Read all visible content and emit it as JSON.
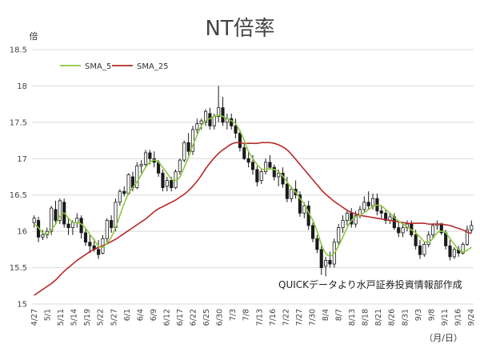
{
  "chart_data": {
    "type": "candlestick",
    "title": "NT倍率",
    "y_unit_label": "倍",
    "x_unit_label": "（月/日）",
    "annotation": "QUICKデータより水戸証券投資情報部作成",
    "ylim": [
      15,
      18.5
    ],
    "yticks": [
      "15",
      "15.5",
      "16",
      "16.5",
      "17",
      "17.5",
      "18",
      "18.5"
    ],
    "grid": true,
    "legend_position": "top-left",
    "colors": {
      "up": "#ffffff",
      "down": "#1a1a1a",
      "sma5": "#8dc63f",
      "sma25": "#b52a2a",
      "grid": "#d9d9d9"
    },
    "x_labels": [
      "4/27",
      "5/1",
      "5/11",
      "5/14",
      "5/19",
      "5/22",
      "5/27",
      "6/1",
      "6/4",
      "6/9",
      "6/12",
      "6/17",
      "6/22",
      "6/25",
      "6/30",
      "7/3",
      "7/8",
      "7/13",
      "7/16",
      "7/22",
      "7/27",
      "7/30",
      "8/4",
      "8/7",
      "8/13",
      "8/18",
      "8/21",
      "8/26",
      "8/31",
      "9/3",
      "9/8",
      "9/11",
      "9/16",
      "9/24"
    ],
    "candles": [
      [
        16.12,
        16.22,
        16.05,
        16.18
      ],
      [
        16.15,
        16.2,
        15.85,
        15.92
      ],
      [
        15.92,
        16.02,
        15.88,
        15.95
      ],
      [
        15.95,
        16.05,
        15.9,
        16.0
      ],
      [
        16.0,
        16.35,
        15.95,
        16.32
      ],
      [
        16.3,
        16.42,
        16.1,
        16.15
      ],
      [
        16.15,
        16.45,
        16.1,
        16.42
      ],
      [
        16.4,
        16.45,
        16.05,
        16.1
      ],
      [
        16.1,
        16.18,
        15.95,
        16.05
      ],
      [
        16.05,
        16.15,
        15.95,
        16.12
      ],
      [
        16.12,
        16.25,
        16.05,
        16.18
      ],
      [
        16.18,
        16.22,
        15.9,
        15.98
      ],
      [
        15.98,
        16.05,
        15.8,
        15.85
      ],
      [
        15.85,
        15.95,
        15.7,
        15.8
      ],
      [
        15.8,
        15.9,
        15.72,
        15.75
      ],
      [
        15.75,
        15.88,
        15.62,
        15.68
      ],
      [
        15.7,
        15.95,
        15.68,
        15.9
      ],
      [
        15.9,
        16.18,
        15.85,
        16.15
      ],
      [
        16.15,
        16.22,
        15.98,
        16.05
      ],
      [
        16.05,
        16.45,
        16.0,
        16.4
      ],
      [
        16.4,
        16.58,
        16.35,
        16.55
      ],
      [
        16.55,
        16.62,
        16.48,
        16.52
      ],
      [
        16.52,
        16.8,
        16.5,
        16.78
      ],
      [
        16.75,
        16.82,
        16.55,
        16.6
      ],
      [
        16.6,
        16.95,
        16.58,
        16.9
      ],
      [
        16.9,
        16.98,
        16.8,
        16.92
      ],
      [
        16.92,
        17.12,
        16.88,
        17.08
      ],
      [
        17.08,
        17.12,
        16.92,
        17.0
      ],
      [
        17.0,
        17.1,
        16.88,
        16.95
      ],
      [
        16.95,
        16.98,
        16.75,
        16.8
      ],
      [
        16.8,
        16.85,
        16.55,
        16.6
      ],
      [
        16.62,
        16.75,
        16.55,
        16.7
      ],
      [
        16.7,
        16.75,
        16.55,
        16.6
      ],
      [
        16.6,
        16.85,
        16.58,
        16.82
      ],
      [
        16.82,
        17.0,
        16.78,
        16.98
      ],
      [
        16.98,
        17.25,
        16.95,
        17.22
      ],
      [
        17.22,
        17.35,
        17.05,
        17.1
      ],
      [
        17.1,
        17.45,
        17.05,
        17.4
      ],
      [
        17.4,
        17.55,
        17.35,
        17.48
      ],
      [
        17.48,
        17.55,
        17.4,
        17.52
      ],
      [
        17.5,
        17.68,
        17.45,
        17.65
      ],
      [
        17.62,
        17.7,
        17.4,
        17.45
      ],
      [
        17.45,
        17.62,
        17.4,
        17.58
      ],
      [
        17.58,
        18.0,
        17.5,
        17.7
      ],
      [
        17.7,
        17.85,
        17.45,
        17.5
      ],
      [
        17.5,
        17.62,
        17.4,
        17.55
      ],
      [
        17.55,
        17.62,
        17.4,
        17.45
      ],
      [
        17.45,
        17.55,
        17.28,
        17.35
      ],
      [
        17.35,
        17.4,
        17.1,
        17.15
      ],
      [
        17.15,
        17.2,
        16.98,
        17.0
      ],
      [
        17.0,
        17.1,
        16.88,
        16.95
      ],
      [
        16.95,
        17.05,
        16.78,
        16.85
      ],
      [
        16.85,
        16.9,
        16.62,
        16.68
      ],
      [
        16.7,
        16.85,
        16.65,
        16.82
      ],
      [
        16.82,
        17.0,
        16.78,
        16.95
      ],
      [
        16.95,
        17.05,
        16.85,
        16.88
      ],
      [
        16.88,
        16.92,
        16.7,
        16.75
      ],
      [
        16.75,
        16.85,
        16.62,
        16.8
      ],
      [
        16.8,
        16.88,
        16.6,
        16.65
      ],
      [
        16.65,
        16.75,
        16.4,
        16.45
      ],
      [
        16.45,
        16.62,
        16.4,
        16.58
      ],
      [
        16.58,
        16.7,
        16.45,
        16.5
      ],
      [
        16.5,
        16.55,
        16.2,
        16.25
      ],
      [
        16.25,
        16.4,
        16.18,
        16.35
      ],
      [
        16.35,
        16.42,
        16.02,
        16.08
      ],
      [
        16.08,
        16.12,
        15.85,
        15.9
      ],
      [
        15.9,
        15.95,
        15.7,
        15.75
      ],
      [
        15.75,
        15.82,
        15.4,
        15.5
      ],
      [
        15.52,
        15.65,
        15.38,
        15.6
      ],
      [
        15.6,
        15.72,
        15.5,
        15.55
      ],
      [
        15.55,
        15.9,
        15.5,
        15.85
      ],
      [
        15.85,
        16.1,
        15.8,
        16.05
      ],
      [
        16.05,
        16.22,
        15.98,
        16.15
      ],
      [
        16.15,
        16.3,
        16.08,
        16.25
      ],
      [
        16.25,
        16.32,
        16.05,
        16.1
      ],
      [
        16.1,
        16.28,
        16.05,
        16.22
      ],
      [
        16.22,
        16.35,
        16.18,
        16.3
      ],
      [
        16.3,
        16.48,
        16.25,
        16.4
      ],
      [
        16.4,
        16.55,
        16.3,
        16.35
      ],
      [
        16.35,
        16.52,
        16.3,
        16.45
      ],
      [
        16.45,
        16.52,
        16.22,
        16.28
      ],
      [
        16.28,
        16.35,
        16.18,
        16.25
      ],
      [
        16.25,
        16.3,
        16.1,
        16.15
      ],
      [
        16.15,
        16.25,
        16.1,
        16.2
      ],
      [
        16.2,
        16.25,
        16.02,
        16.05
      ],
      [
        16.05,
        16.12,
        15.92,
        15.98
      ],
      [
        15.98,
        16.1,
        15.92,
        16.05
      ],
      [
        16.05,
        16.15,
        16.0,
        16.1
      ],
      [
        16.1,
        16.15,
        15.92,
        15.95
      ],
      [
        15.95,
        16.02,
        15.75,
        15.8
      ],
      [
        15.8,
        15.88,
        15.62,
        15.68
      ],
      [
        15.68,
        15.85,
        15.65,
        15.82
      ],
      [
        15.82,
        16.0,
        15.78,
        15.95
      ],
      [
        15.95,
        16.1,
        15.9,
        16.08
      ],
      [
        16.08,
        16.15,
        16.02,
        16.1
      ],
      [
        16.1,
        16.12,
        15.95,
        15.98
      ],
      [
        15.98,
        16.02,
        15.75,
        15.8
      ],
      [
        15.8,
        15.88,
        15.6,
        15.65
      ],
      [
        15.65,
        15.78,
        15.62,
        15.75
      ],
      [
        15.75,
        15.8,
        15.65,
        15.7
      ],
      [
        15.7,
        15.85,
        15.68,
        15.82
      ],
      [
        15.82,
        16.08,
        15.8,
        16.02
      ],
      [
        16.02,
        16.15,
        15.98,
        16.08
      ]
    ],
    "sma5": [
      16.1,
      16.05,
      15.98,
      15.96,
      16.02,
      16.1,
      16.2,
      16.25,
      16.18,
      16.12,
      16.12,
      16.1,
      16.04,
      15.96,
      15.88,
      15.8,
      15.78,
      15.84,
      15.92,
      16.05,
      16.22,
      16.38,
      16.52,
      16.6,
      16.68,
      16.78,
      16.88,
      16.95,
      16.98,
      16.95,
      16.88,
      16.8,
      16.72,
      16.7,
      16.75,
      16.88,
      17.02,
      17.18,
      17.32,
      17.45,
      17.52,
      17.55,
      17.58,
      17.6,
      17.58,
      17.55,
      17.52,
      17.48,
      17.38,
      17.25,
      17.1,
      17.0,
      16.92,
      16.86,
      16.85,
      16.86,
      16.85,
      16.82,
      16.76,
      16.68,
      16.6,
      16.54,
      16.45,
      16.38,
      16.26,
      16.15,
      16.0,
      15.82,
      15.7,
      15.66,
      15.7,
      15.8,
      15.92,
      16.05,
      16.15,
      16.2,
      16.22,
      16.26,
      16.3,
      16.34,
      16.36,
      16.35,
      16.3,
      16.25,
      16.19,
      16.14,
      16.1,
      16.06,
      16.02,
      15.98,
      15.92,
      15.86,
      15.85,
      15.9,
      15.98,
      16.0,
      15.98,
      15.9,
      15.82,
      15.75,
      15.72,
      15.74,
      15.78
    ],
    "sma25": [
      15.12,
      15.16,
      15.2,
      15.24,
      15.28,
      15.33,
      15.39,
      15.45,
      15.5,
      15.55,
      15.6,
      15.64,
      15.68,
      15.72,
      15.75,
      15.78,
      15.8,
      15.83,
      15.86,
      15.89,
      15.93,
      15.97,
      16.01,
      16.05,
      16.09,
      16.13,
      16.17,
      16.22,
      16.27,
      16.31,
      16.34,
      16.37,
      16.4,
      16.43,
      16.47,
      16.51,
      16.56,
      16.62,
      16.69,
      16.77,
      16.86,
      16.94,
      17.01,
      17.07,
      17.12,
      17.16,
      17.2,
      17.22,
      17.22,
      17.21,
      17.21,
      17.21,
      17.21,
      17.22,
      17.22,
      17.22,
      17.21,
      17.19,
      17.16,
      17.12,
      17.06,
      16.99,
      16.92,
      16.85,
      16.78,
      16.71,
      16.64,
      16.57,
      16.51,
      16.46,
      16.41,
      16.37,
      16.33,
      16.29,
      16.26,
      16.24,
      16.22,
      16.21,
      16.2,
      16.19,
      16.18,
      16.17,
      16.16,
      16.15,
      16.14,
      16.13,
      16.12,
      16.11,
      16.11,
      16.11,
      16.11,
      16.11,
      16.1,
      16.1,
      16.1,
      16.1,
      16.09,
      16.08,
      16.06,
      16.04,
      16.02,
      15.99,
      15.97
    ],
    "series": [
      {
        "name": "SMA_5"
      },
      {
        "name": "SMA_25"
      }
    ]
  }
}
